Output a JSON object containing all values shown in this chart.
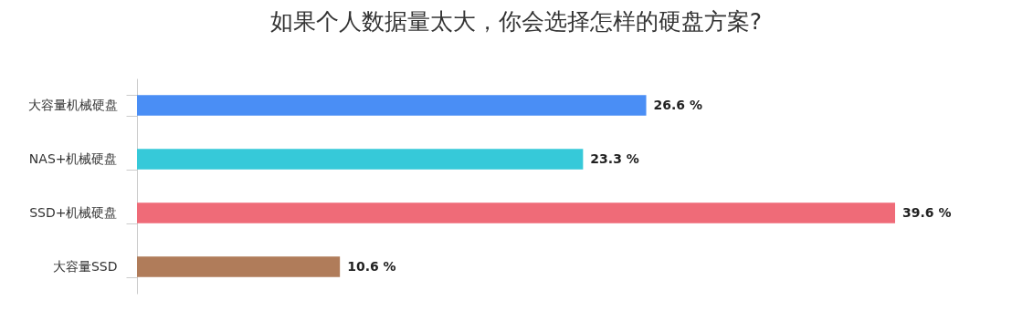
{
  "chart_data": {
    "type": "bar",
    "orientation": "horizontal",
    "title": "如果个人数据量太大，你会选择怎样的硬盘方案?",
    "categories": [
      "大容量机械硬盘",
      "NAS+机械硬盘",
      "SSD+机械硬盘",
      "大容量SSD"
    ],
    "values": [
      26.6,
      23.3,
      39.6,
      10.6
    ],
    "colors": [
      "#4a8ef5",
      "#36c9d9",
      "#ef6b78",
      "#b07c5a"
    ],
    "value_labels": [
      "26.6 %",
      "23.3 %",
      "39.6 %",
      "10.6 %"
    ]
  }
}
